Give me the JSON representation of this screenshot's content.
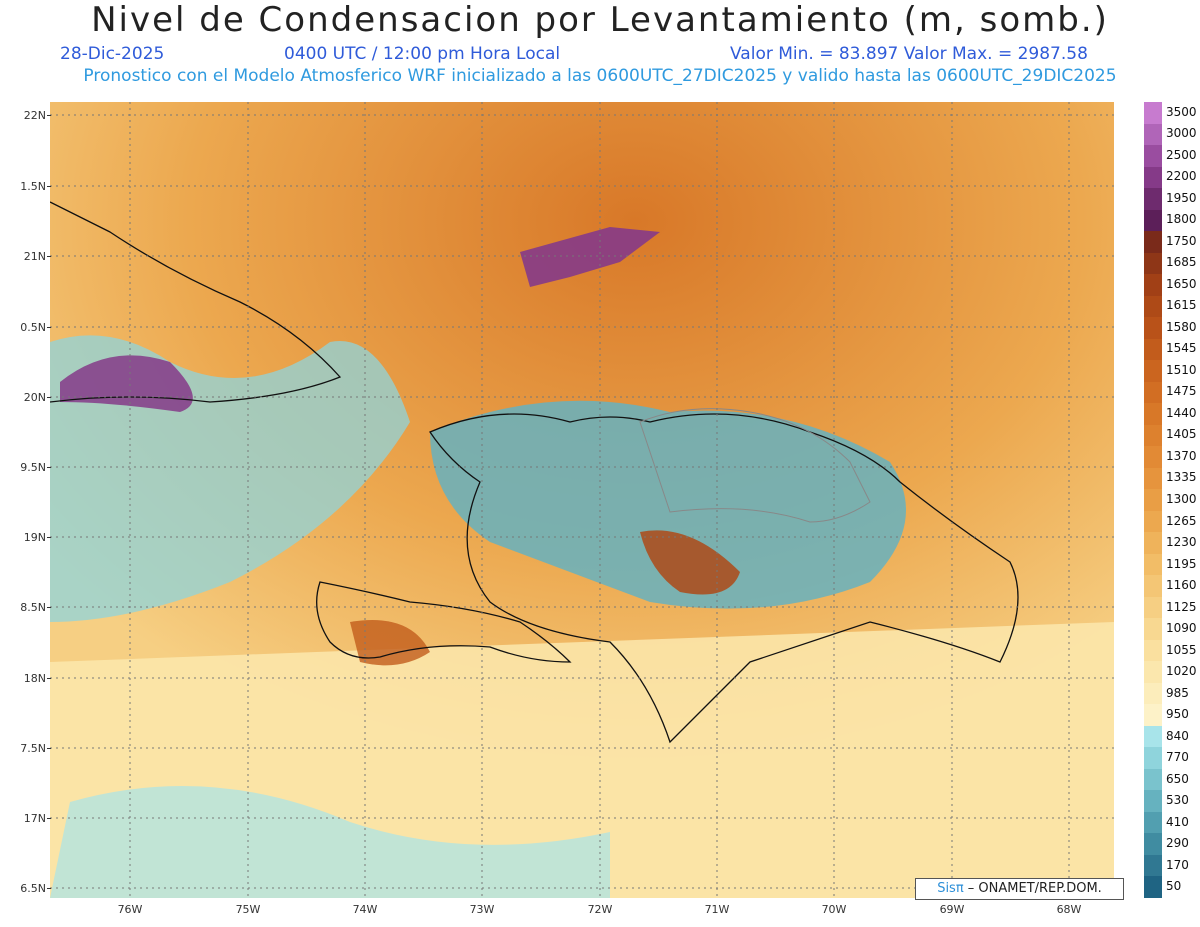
{
  "header": {
    "title": "Nivel de Condensacion por Levantamiento (m, somb.)",
    "date": "28-Dic-2025",
    "time": "0400 UTC / 12:00 pm Hora Local",
    "minmax": "Valor Min. = 83.897   Valor Max. = 2987.58",
    "forecast": "Pronostico con el Modelo Atmosferico WRF inicializado a las 0600UTC_27DIC2025 y valido hasta las  0600UTC_29DIC2025"
  },
  "axes": {
    "lat_labels": [
      "22N",
      "1.5N",
      "21N",
      "0.5N",
      "20N",
      "9.5N",
      "19N",
      "8.5N",
      "18N",
      "7.5N",
      "17N",
      "6.5N"
    ],
    "lon_labels": [
      "76W",
      "75W",
      "74W",
      "73W",
      "72W",
      "71W",
      "70W",
      "69W",
      "68W"
    ]
  },
  "colorbar": {
    "labels": [
      "3500",
      "3000",
      "2500",
      "2200",
      "1950",
      "1800",
      "1750",
      "1685",
      "1650",
      "1615",
      "1580",
      "1545",
      "1510",
      "1475",
      "1440",
      "1405",
      "1370",
      "1335",
      "1300",
      "1265",
      "1230",
      "1195",
      "1160",
      "1125",
      "1090",
      "1055",
      "1020",
      "985",
      "950",
      "840",
      "770",
      "650",
      "530",
      "410",
      "290",
      "170",
      "50"
    ],
    "colors": [
      "#c77bcf",
      "#b065b8",
      "#9a4da0",
      "#853a88",
      "#6e2b6e",
      "#5c1f59",
      "#7a2a1a",
      "#8e3617",
      "#a14016",
      "#ae4a17",
      "#b95219",
      "#c25c1c",
      "#cb651f",
      "#d26e23",
      "#d87828",
      "#dd812e",
      "#e28a35",
      "#e6943d",
      "#e99e45",
      "#eca84f",
      "#efb35b",
      "#f2bd67",
      "#f4c675",
      "#f6cf83",
      "#f8d891",
      "#fae09f",
      "#fbe7ad",
      "#fcedbb",
      "#fdf2c8",
      "#a8e4ea",
      "#8fd4dc",
      "#7ac3cd",
      "#66b2bf",
      "#529fb0",
      "#408ca1",
      "#307892",
      "#1f6483"
    ]
  },
  "credit": {
    "sis": "Sisπ",
    "rest": " – ONAMET/REP.DOM."
  }
}
